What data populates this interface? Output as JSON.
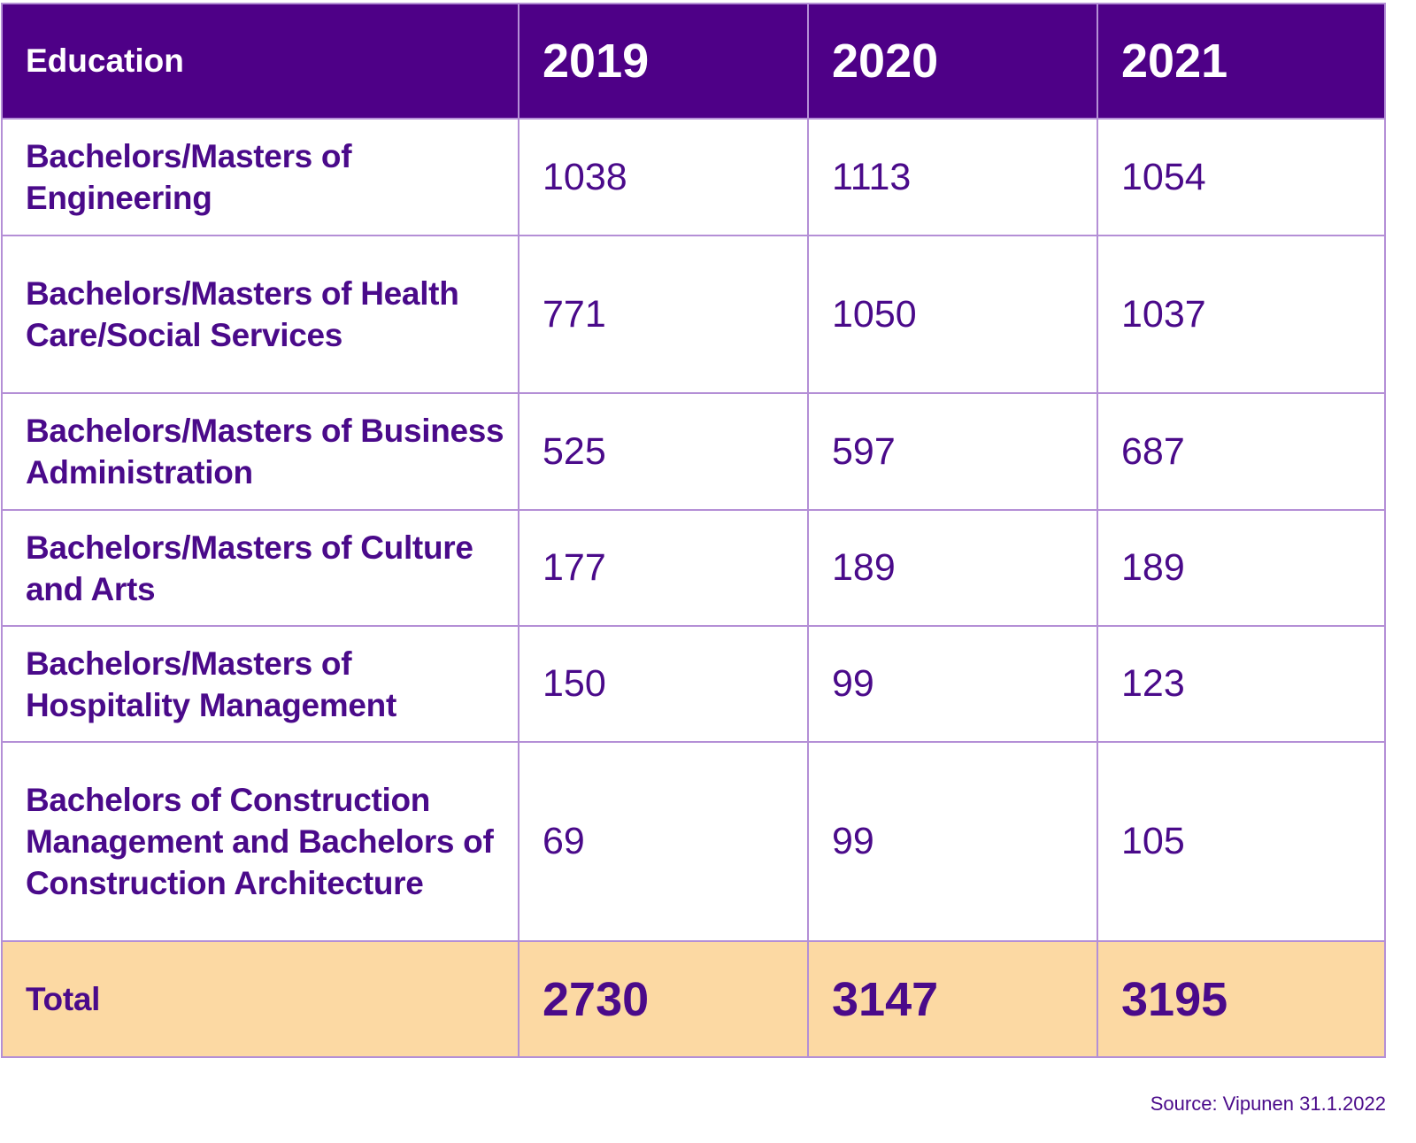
{
  "chart_data": {
    "type": "table",
    "columns": [
      "Education",
      "2019",
      "2020",
      "2021"
    ],
    "rows": [
      {
        "label": "Bachelors/Masters of Engineering",
        "values": [
          "1038",
          "1113",
          "1054"
        ]
      },
      {
        "label": "Bachelors/Masters of Health Care/Social Services",
        "values": [
          "771",
          "1050",
          "1037"
        ]
      },
      {
        "label": "Bachelors/Masters of Business Administration",
        "values": [
          "525",
          "597",
          "687"
        ]
      },
      {
        "label": "Bachelors/Masters of Culture and Arts",
        "values": [
          "177",
          "189",
          "189"
        ]
      },
      {
        "label": "Bachelors/Masters of Hospitality Management",
        "values": [
          "150",
          "99",
          "123"
        ]
      },
      {
        "label": "Bachelors of Construction Management and Bachelors of Construction Architecture",
        "values": [
          "69",
          "99",
          "105"
        ]
      }
    ],
    "total": {
      "label": "Total",
      "values": [
        "2730",
        "3147",
        "3195"
      ]
    },
    "source": "Source: Vipunen 31.1.2022",
    "colors": {
      "header_bg": "#4e0087",
      "text": "#4a0a8a",
      "border": "#b48fd6",
      "total_bg": "#fcd9a3"
    }
  }
}
